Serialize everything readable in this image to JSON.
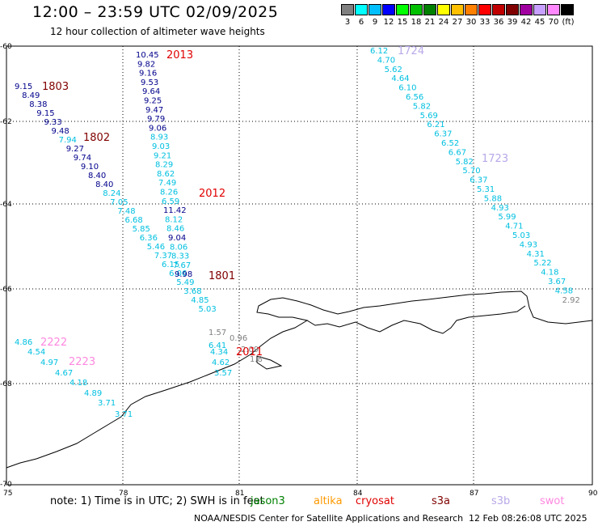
{
  "header": {
    "title": "12:00 – 23:59 UTC 02/09/2025",
    "subtitle": "12 hour collection of altimeter wave heights"
  },
  "legend": {
    "unit": "(ft)",
    "items": [
      {
        "label": "3",
        "color": "#808080"
      },
      {
        "label": "6",
        "color": "#00ffff"
      },
      {
        "label": "9",
        "color": "#00bfff"
      },
      {
        "label": "12",
        "color": "#0000ff"
      },
      {
        "label": "15",
        "color": "#00ff00"
      },
      {
        "label": "18",
        "color": "#00c000"
      },
      {
        "label": "21",
        "color": "#008000"
      },
      {
        "label": "24",
        "color": "#ffff00"
      },
      {
        "label": "27",
        "color": "#ffc000"
      },
      {
        "label": "30",
        "color": "#ff8000"
      },
      {
        "label": "33",
        "color": "#ff0000"
      },
      {
        "label": "36",
        "color": "#c00000"
      },
      {
        "label": "39",
        "color": "#800000"
      },
      {
        "label": "42",
        "color": "#a000a0"
      },
      {
        "label": "45",
        "color": "#c8a0ff"
      },
      {
        "label": "70",
        "color": "#ff88ff"
      },
      {
        "label": "",
        "color": "#000000"
      }
    ]
  },
  "axes": {
    "lat_ticks": [
      "-60",
      "-62",
      "-64",
      "-66",
      "-68",
      "-70"
    ],
    "lon_ticks": [
      "75",
      "78",
      "81",
      "84",
      "87",
      "90"
    ]
  },
  "tracks": [
    {
      "name": "1803",
      "color": "#800000"
    },
    {
      "name": "1802",
      "color": "#800000"
    },
    {
      "name": "1801",
      "color": "#800000"
    },
    {
      "name": "2013",
      "color": "#e00000"
    },
    {
      "name": "2012",
      "color": "#e00000"
    },
    {
      "name": "2011",
      "color": "#e00000"
    },
    {
      "name": "1724",
      "color": "#b8a8e8"
    },
    {
      "name": "1723",
      "color": "#b8a8e8"
    },
    {
      "name": "2222",
      "color": "#ff88e0"
    },
    {
      "name": "2223",
      "color": "#ff88e0"
    }
  ],
  "colors": {
    "dark": "#00008b",
    "cyan": "#00c0e0",
    "gray": "#808080"
  },
  "values": {
    "t1803": [
      "9.15",
      "8.49",
      "8.38",
      "9.15",
      "9.33",
      "9.48",
      "7.94",
      "9.27",
      "9.74",
      "9.10",
      "8.40",
      "8.40",
      "8.24",
      "7.05",
      "7.48",
      "6.68",
      "5.85",
      "6.36",
      "5.46",
      "7.37",
      "6.15",
      "6.06",
      "5.49",
      "3.68",
      "4.85",
      "5.03"
    ],
    "t2013": [
      "10.45",
      "9.82",
      "9.16",
      "9.53",
      "9.64",
      "9.25",
      "9.47",
      "9.79",
      "9.06",
      "8.93",
      "9.03",
      "9.21",
      "8.29",
      "8.62",
      "7.49",
      "8.26",
      "6.59",
      "11.42",
      "8.12",
      "8.46",
      "9.04",
      "8.06",
      "8.33",
      "7.67",
      "9.98"
    ],
    "t1724": [
      "6.12",
      "4.70",
      "5.62",
      "4.64",
      "6.10",
      "6.56",
      "5.82",
      "5.69",
      "6.21",
      "6.37",
      "6.52",
      "6.67",
      "5.82",
      "5.70",
      "6.37",
      "5.31",
      "5.88",
      "4.93",
      "5.99",
      "4.71",
      "5.03",
      "4.93",
      "4.31",
      "5.22",
      "4.18",
      "3.67",
      "4.58",
      "2.92"
    ],
    "t2011": [
      "1.57",
      "0.96",
      "6.41",
      "4.34",
      "4.62",
      "3.57",
      "2.09",
      "1.8"
    ],
    "t2222": [
      "4.86",
      "4.54",
      "4.97",
      "4.67",
      "4.18",
      "4.89",
      "3.71",
      "3.71"
    ]
  },
  "footer": {
    "note": "note:  1) Time is in UTC; 2) SWH is in feet",
    "missions": [
      {
        "name": "jason3",
        "color": "#008000"
      },
      {
        "name": "altika",
        "color": "#ff9900"
      },
      {
        "name": "cryosat",
        "color": "#e00000"
      },
      {
        "name": "s3a",
        "color": "#800000"
      },
      {
        "name": "s3b",
        "color": "#b8a8e8"
      },
      {
        "name": "swot",
        "color": "#ff88e0"
      }
    ],
    "credit": "NOAA/NESDIS Center for Satellite Applications and Research",
    "timestamp": "12 Feb 08:26:08 UTC 2025"
  }
}
